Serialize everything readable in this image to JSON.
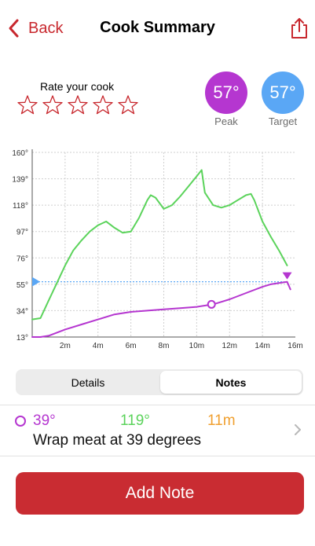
{
  "nav": {
    "back_label": "Back",
    "title": "Cook Summary"
  },
  "rating": {
    "label": "Rate your cook",
    "stars_total": 5,
    "stars_filled": 0
  },
  "stats": {
    "peak": {
      "value": "57°",
      "label": "Peak"
    },
    "target": {
      "value": "57°",
      "label": "Target"
    }
  },
  "chart_data": {
    "type": "line",
    "y_ticks": [
      "160°",
      "139°",
      "118°",
      "97°",
      "76°",
      "55°",
      "34°",
      "13°"
    ],
    "x_ticks": [
      "2m",
      "4m",
      "6m",
      "8m",
      "10m",
      "12m",
      "14m",
      "16m"
    ],
    "ylim": [
      13,
      160
    ],
    "xlim": [
      0,
      16
    ],
    "grid": true,
    "target_line": 57,
    "series": [
      {
        "color": "#5bd35b",
        "x": [
          0,
          0.5,
          1,
          2,
          2.5,
          3,
          3.5,
          4,
          4.5,
          5,
          5.5,
          6,
          6.5,
          7,
          7.2,
          7.5,
          8,
          8.5,
          9,
          9.5,
          10,
          10.3,
          10.5,
          11,
          11.5,
          12,
          12.5,
          13,
          13.3,
          13.5,
          14,
          14.5,
          15,
          15.5
        ],
        "y": [
          27,
          28,
          42,
          70,
          82,
          90,
          97,
          102,
          105,
          100,
          96,
          97,
          108,
          122,
          126,
          124,
          115,
          118,
          125,
          133,
          141,
          146,
          128,
          118,
          116,
          118,
          122,
          126,
          127,
          122,
          105,
          93,
          82,
          70
        ]
      },
      {
        "color": "#b536d0",
        "x": [
          0,
          0.5,
          1,
          2,
          3,
          4,
          5,
          6,
          7,
          8,
          9,
          10,
          11,
          12,
          13,
          14,
          14.5,
          15,
          15.5,
          15.7
        ],
        "y": [
          13,
          13,
          14,
          19,
          23,
          27,
          31,
          33,
          34,
          35,
          36,
          37,
          39,
          43,
          48,
          53,
          55,
          56,
          57,
          51
        ]
      }
    ],
    "markers": [
      {
        "x": 10.9,
        "y": 39,
        "series": 1
      }
    ]
  },
  "tabs": {
    "details_label": "Details",
    "notes_label": "Notes",
    "selected": "Notes"
  },
  "note": {
    "internal": "39°",
    "ambient": "119°",
    "time": "11m",
    "text": "Wrap meat at 39 degrees"
  },
  "add_note_label": "Add Note",
  "colors": {
    "accent": "#c92c32",
    "internal": "#b536d0",
    "ambient": "#5bd35b",
    "target": "#5aa7f5",
    "time": "#f0a030"
  },
  "icons": {
    "back": "chevron-left-icon",
    "share": "share-icon",
    "star": "star-outline-icon",
    "row_chevron": "chevron-right-icon"
  }
}
